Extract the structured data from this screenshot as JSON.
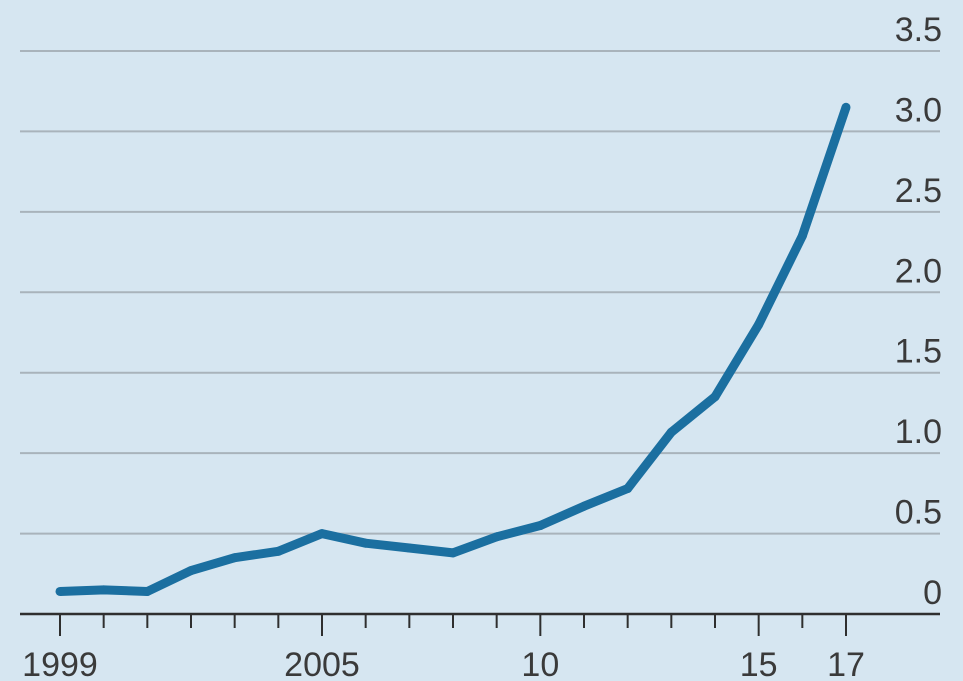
{
  "colors": {
    "background": "#d6e6f1",
    "line": "#1b6fa0",
    "grid": "#a9b3bb",
    "axis": "#2f2f2f",
    "text": "#3a3a3a"
  },
  "chart_data": {
    "type": "line",
    "title": "",
    "xlabel": "",
    "ylabel": "",
    "x": [
      1999,
      2000,
      2001,
      2002,
      2003,
      2004,
      2005,
      2006,
      2007,
      2008,
      2009,
      2010,
      2011,
      2012,
      2013,
      2014,
      2015,
      2016,
      2017
    ],
    "series": [
      {
        "values": [
          0.14,
          0.15,
          0.14,
          0.27,
          0.35,
          0.39,
          0.5,
          0.44,
          0.41,
          0.38,
          0.48,
          0.55,
          0.67,
          0.78,
          1.13,
          1.35,
          1.8,
          2.35,
          3.15
        ]
      }
    ],
    "ylim": [
      0,
      3.5
    ],
    "xlim": [
      1999,
      2017
    ],
    "y_ticks": [
      "0",
      "0.5",
      "1.0",
      "1.5",
      "2.0",
      "2.5",
      "3.0",
      "3.5"
    ],
    "x_tick_labels": [
      {
        "value": 1999,
        "label": "1999"
      },
      {
        "value": 2005,
        "label": "2005"
      },
      {
        "value": 2010,
        "label": "10"
      },
      {
        "value": 2015,
        "label": "15"
      },
      {
        "value": 2017,
        "label": "17"
      }
    ],
    "grid": true,
    "y_axis_side": "right",
    "legend": "none"
  }
}
